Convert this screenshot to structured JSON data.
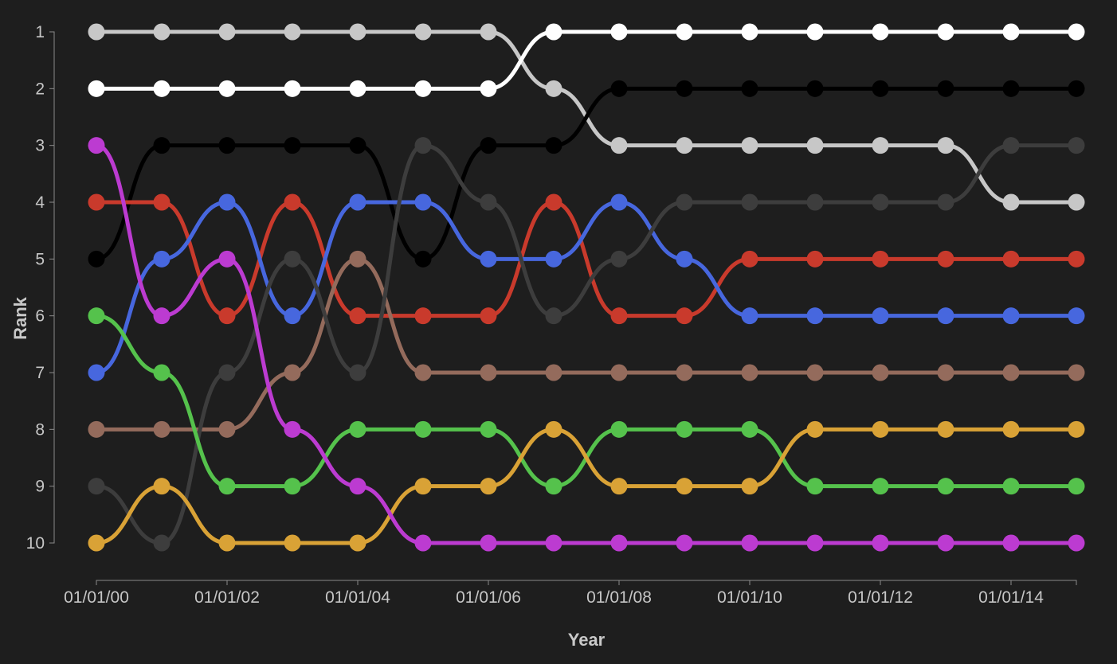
{
  "page": {
    "background": "#1e1e1e"
  },
  "chart_data": {
    "type": "line",
    "variant": "bump-chart",
    "title": "",
    "xlabel": "Year",
    "ylabel": "Rank",
    "x": [
      2000,
      2001,
      2002,
      2003,
      2004,
      2005,
      2006,
      2007,
      2008,
      2009,
      2010,
      2011,
      2012,
      2013,
      2014,
      2015
    ],
    "x_tick_values": [
      2000,
      2002,
      2004,
      2006,
      2008,
      2010,
      2012,
      2014
    ],
    "x_tick_labels": [
      "01/01/00",
      "01/01/02",
      "01/01/04",
      "01/01/06",
      "01/01/08",
      "01/01/10",
      "01/01/12",
      "01/01/14"
    ],
    "y_ticks": [
      1,
      2,
      3,
      4,
      5,
      6,
      7,
      8,
      9,
      10
    ],
    "y_axis_note": "rank 1 at top, rank 10 at bottom",
    "ylim": [
      1,
      10
    ],
    "grid": false,
    "legend": "none",
    "axis_color": "#8b8b8b",
    "tick_label_color": "#c6c6c6",
    "axis_title_color": "#c9c9c9",
    "series": [
      {
        "name": "silver",
        "color": "#c7c7c7",
        "values": [
          1,
          1,
          1,
          1,
          1,
          1,
          1,
          2,
          3,
          3,
          3,
          3,
          3,
          3,
          4,
          4
        ]
      },
      {
        "name": "white",
        "color": "#ffffff",
        "values": [
          2,
          2,
          2,
          2,
          2,
          2,
          2,
          1,
          1,
          1,
          1,
          1,
          1,
          1,
          1,
          1
        ]
      },
      {
        "name": "black",
        "color": "#000000",
        "values": [
          5,
          3,
          3,
          3,
          3,
          5,
          3,
          3,
          2,
          2,
          2,
          2,
          2,
          2,
          2,
          2
        ]
      },
      {
        "name": "red",
        "color": "#c93a2c",
        "values": [
          4,
          4,
          6,
          4,
          6,
          6,
          6,
          4,
          6,
          6,
          5,
          5,
          5,
          5,
          5,
          5
        ]
      },
      {
        "name": "blue",
        "color": "#4767de",
        "values": [
          7,
          5,
          4,
          6,
          4,
          4,
          5,
          5,
          4,
          5,
          6,
          6,
          6,
          6,
          6,
          6
        ]
      },
      {
        "name": "brown",
        "color": "#946b5c",
        "values": [
          8,
          8,
          8,
          7,
          5,
          7,
          7,
          7,
          7,
          7,
          7,
          7,
          7,
          7,
          7,
          7
        ]
      },
      {
        "name": "dark-gray",
        "color": "#3d3d3d",
        "values": [
          9,
          10,
          7,
          5,
          7,
          3,
          4,
          6,
          5,
          4,
          4,
          4,
          4,
          4,
          3,
          3
        ]
      },
      {
        "name": "green",
        "color": "#55c24c",
        "values": [
          6,
          7,
          9,
          9,
          8,
          8,
          8,
          9,
          8,
          8,
          8,
          9,
          9,
          9,
          9,
          9
        ]
      },
      {
        "name": "orange",
        "color": "#d9a236",
        "values": [
          10,
          9,
          10,
          10,
          10,
          9,
          9,
          8,
          9,
          9,
          9,
          8,
          8,
          8,
          8,
          8
        ]
      },
      {
        "name": "magenta",
        "color": "#bc3bd1",
        "values": [
          3,
          6,
          5,
          8,
          9,
          10,
          10,
          10,
          10,
          10,
          10,
          10,
          10,
          10,
          10,
          10
        ]
      }
    ]
  }
}
